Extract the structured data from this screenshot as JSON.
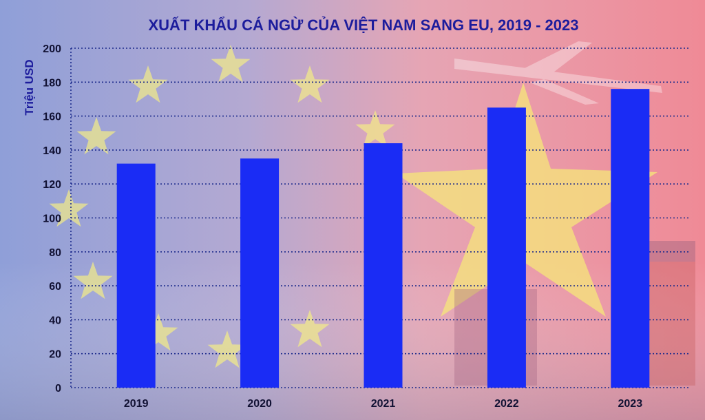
{
  "chart_data": {
    "type": "bar",
    "title": "XUẤT KHẨU CÁ NGỪ CỦA VIỆT NAM SANG EU, 2019 - 2023",
    "ylabel": "Triệu USD",
    "xlabel": "",
    "categories": [
      "2019",
      "2020",
      "2021",
      "2022",
      "2023"
    ],
    "values": [
      132,
      135,
      144,
      165,
      176
    ],
    "ylim": [
      0,
      200
    ],
    "yticks": [
      0,
      20,
      40,
      60,
      80,
      100,
      120,
      140,
      160,
      180,
      200
    ],
    "grid": true,
    "legend": "none",
    "colors": {
      "bar": "#1a2cf5",
      "grid": "#1c2a8c",
      "title": "#1c1c9c"
    }
  }
}
